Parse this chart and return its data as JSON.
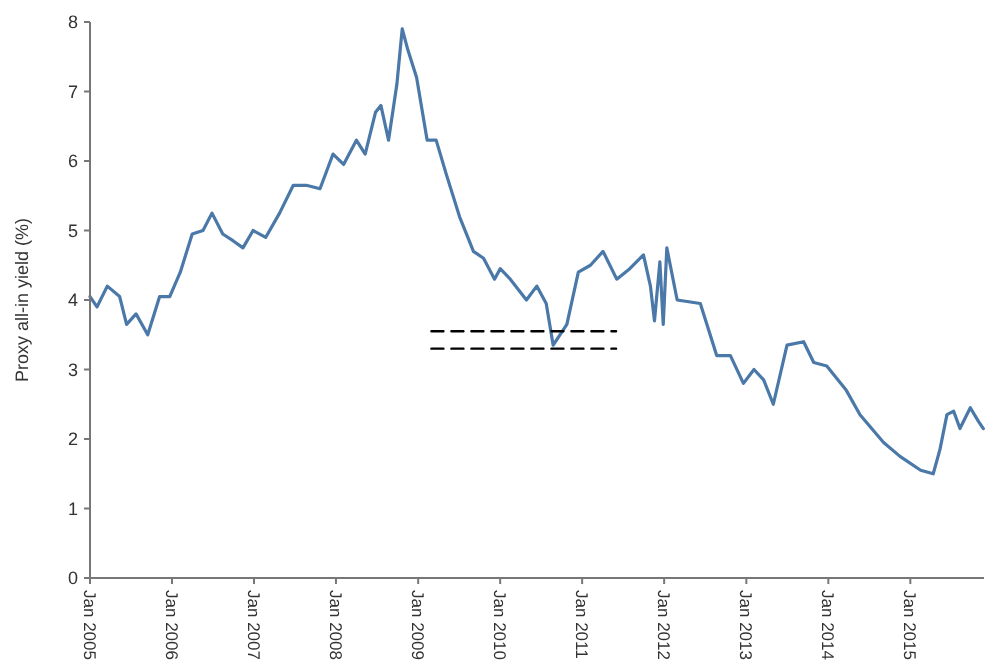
{
  "chart_data": {
    "type": "line",
    "ylabel": "Proxy all-in yield (%)",
    "ylim": [
      0,
      8
    ],
    "yticks": [
      0,
      1,
      2,
      3,
      4,
      5,
      6,
      7,
      8
    ],
    "xlim": [
      "2005-01-01",
      "2015-11-25"
    ],
    "xticks": [
      {
        "value": "2005-01-01",
        "label": "Jan 2005"
      },
      {
        "value": "2006-01-01",
        "label": "Jan 2006"
      },
      {
        "value": "2007-01-01",
        "label": "Jan 2007"
      },
      {
        "value": "2008-01-01",
        "label": "Jan 2008"
      },
      {
        "value": "2009-01-01",
        "label": "Jan 2009"
      },
      {
        "value": "2010-01-01",
        "label": "Jan 2010"
      },
      {
        "value": "2011-01-01",
        "label": "Jan 2011"
      },
      {
        "value": "2012-01-01",
        "label": "Jan 2012"
      },
      {
        "value": "2013-01-01",
        "label": "Jan 2013"
      },
      {
        "value": "2014-01-01",
        "label": "Jan 2014"
      },
      {
        "value": "2015-01-01",
        "label": "Jan 2015"
      }
    ],
    "grid": false,
    "series": [
      {
        "color": "#4a78a8",
        "line_style": "solid",
        "x": [
          "2005-01-01",
          "2005-02-01",
          "2005-03-19",
          "2005-05-13",
          "2005-06-13",
          "2005-07-25",
          "2005-09-15",
          "2005-11-07",
          "2005-12-22",
          "2006-02-07",
          "2006-04-01",
          "2006-05-19",
          "2006-06-28",
          "2006-08-15",
          "2006-10-01",
          "2006-11-13",
          "2006-12-28",
          "2007-02-22",
          "2007-04-25",
          "2007-06-25",
          "2007-08-22",
          "2007-10-22",
          "2007-12-19",
          "2008-02-04",
          "2008-04-01",
          "2008-05-10",
          "2008-06-25",
          "2008-07-19",
          "2008-08-22",
          "2008-09-28",
          "2008-10-22",
          "2008-11-16",
          "2008-12-25",
          "2009-02-10",
          "2009-03-22",
          "2009-05-07",
          "2009-07-04",
          "2009-09-04",
          "2009-10-19",
          "2009-12-07",
          "2010-01-01",
          "2010-02-15",
          "2010-04-28",
          "2010-06-13",
          "2010-07-25",
          "2010-08-25",
          "2010-10-25",
          "2010-12-15",
          "2011-02-07",
          "2011-04-04",
          "2011-06-04",
          "2011-08-01",
          "2011-10-01",
          "2011-11-01",
          "2011-11-19",
          "2011-12-13",
          "2011-12-28",
          "2012-01-13",
          "2012-02-28",
          "2012-06-10",
          "2012-08-22",
          "2012-10-22",
          "2012-12-19",
          "2013-02-04",
          "2013-03-19",
          "2013-05-01",
          "2013-07-01",
          "2013-09-13",
          "2013-10-28",
          "2013-12-25",
          "2014-03-22",
          "2014-05-22",
          "2014-09-04",
          "2014-11-16",
          "2015-02-16",
          "2015-04-13",
          "2015-05-13",
          "2015-06-13",
          "2015-07-13",
          "2015-08-10",
          "2015-09-25",
          "2015-11-01",
          "2015-11-22"
        ],
        "values": [
          4.05,
          3.9,
          4.2,
          4.05,
          3.65,
          3.8,
          3.5,
          4.05,
          4.05,
          4.4,
          4.95,
          5.0,
          5.25,
          4.95,
          4.85,
          4.75,
          5.0,
          4.9,
          5.25,
          5.65,
          5.65,
          5.6,
          6.1,
          5.95,
          6.3,
          6.1,
          6.7,
          6.8,
          6.3,
          7.1,
          7.9,
          7.6,
          7.2,
          6.3,
          6.3,
          5.8,
          5.2,
          4.7,
          4.6,
          4.3,
          4.45,
          4.3,
          4.0,
          4.2,
          3.95,
          3.35,
          3.65,
          4.4,
          4.5,
          4.7,
          4.3,
          4.45,
          4.65,
          4.2,
          3.7,
          4.55,
          3.65,
          4.75,
          4.0,
          3.95,
          3.2,
          3.2,
          2.8,
          3.0,
          2.85,
          2.5,
          3.35,
          3.4,
          3.1,
          3.05,
          2.7,
          2.35,
          1.95,
          1.75,
          1.55,
          1.5,
          1.85,
          2.35,
          2.4,
          2.15,
          2.45,
          2.25,
          2.15
        ]
      },
      {
        "color": "#000000",
        "line_style": "dashed",
        "x": [
          "2009-03-01",
          "2011-06-01"
        ],
        "values": [
          3.55,
          3.55
        ]
      },
      {
        "color": "#000000",
        "line_style": "dashed",
        "x": [
          "2009-03-01",
          "2011-06-01"
        ],
        "values": [
          3.3,
          3.3
        ]
      }
    ]
  }
}
